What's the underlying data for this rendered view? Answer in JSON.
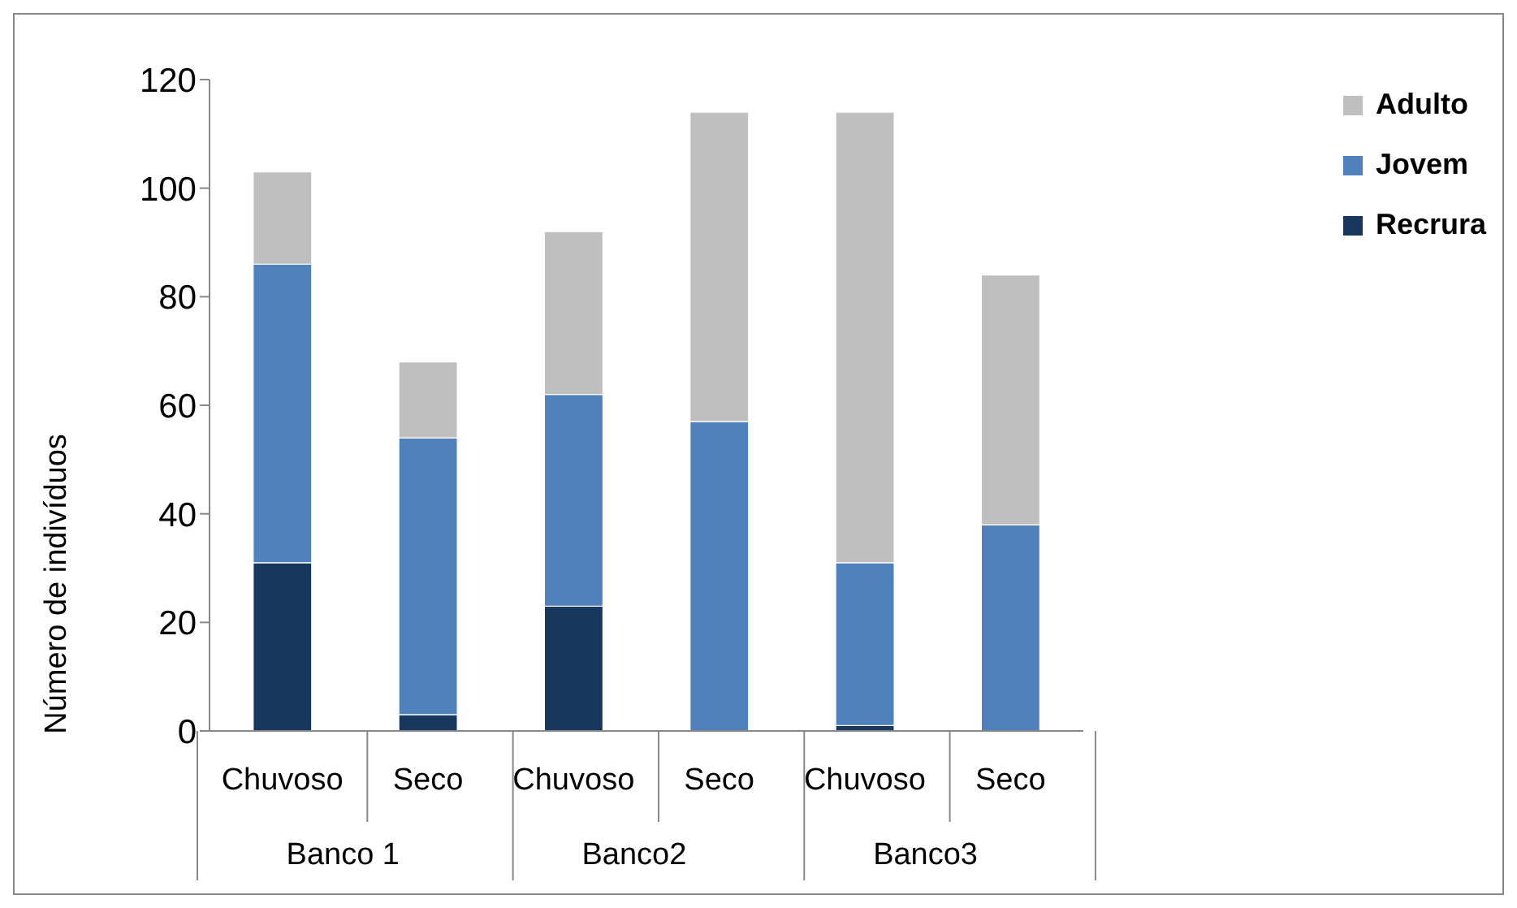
{
  "chart_data": {
    "type": "bar",
    "stacked": true,
    "ylabel": "Número de indivíduos",
    "categories": [
      "Chuvoso",
      "Seco",
      "Chuvoso",
      "Seco",
      "Chuvoso",
      "Seco"
    ],
    "annotations": [
      "Banco 1",
      "Banco2",
      "Banco3"
    ],
    "series": [
      {
        "name": "Recrura",
        "color": "#17375e",
        "values": [
          31,
          3,
          23,
          0,
          1,
          0
        ]
      },
      {
        "name": "Jovem",
        "color": "#4f81bd",
        "values": [
          55,
          51,
          39,
          57,
          30,
          38
        ]
      },
      {
        "name": "Adulto",
        "color": "#bfbfbf",
        "values": [
          17,
          14,
          30,
          57,
          83,
          46
        ]
      }
    ],
    "ylim": [
      0,
      120
    ],
    "yticks": [
      0,
      20,
      40,
      60,
      80,
      100,
      120
    ],
    "grid": false,
    "legend": "top right"
  }
}
